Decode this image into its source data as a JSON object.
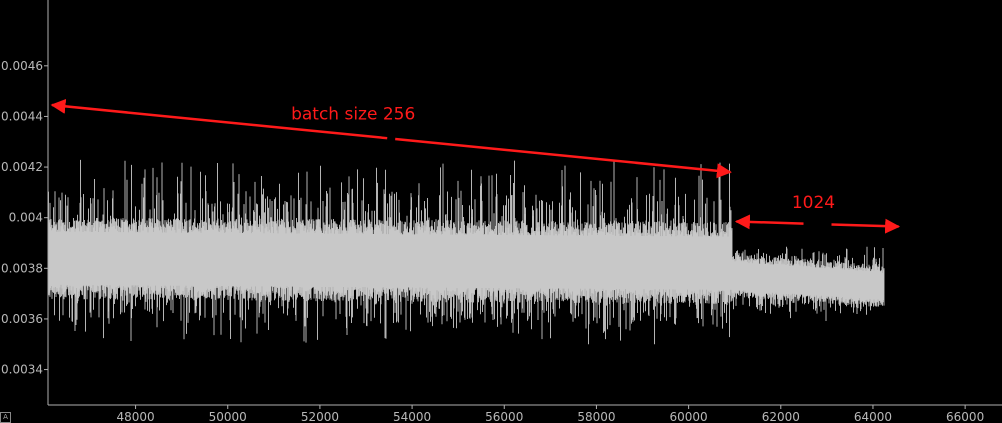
{
  "chart_data": {
    "type": "line",
    "title": "",
    "xlabel": "",
    "ylabel": "",
    "xlim": [
      46100,
      66800
    ],
    "ylim": [
      0.00326,
      0.00486
    ],
    "grid": false,
    "x_ticks": [
      48000,
      50000,
      52000,
      54000,
      56000,
      58000,
      60000,
      62000,
      64000,
      66000
    ],
    "x_tick_labels": [
      "48000",
      "50000",
      "52000",
      "54000",
      "56000",
      "58000",
      "60000",
      "62000",
      "64000",
      "66000"
    ],
    "y_ticks": [
      0.0034,
      0.0036,
      0.0038,
      0.004,
      0.0042,
      0.0044,
      0.0046
    ],
    "y_tick_labels": [
      "0.0034",
      "0.0036",
      "0.0038",
      "0.004",
      "0.0042",
      "0.0044",
      "0.0046"
    ],
    "series": [
      {
        "color": "#c8c8c8",
        "segments": [
          {
            "x_start": 46100,
            "x_end": 60950,
            "band_low": 0.0037,
            "band_high": 0.00395,
            "mean_start": 0.00384,
            "mean_end": 0.00382,
            "spike_max": 0.00423,
            "spike_min": 0.0035
          },
          {
            "x_start": 60950,
            "x_end": 64250,
            "band_low": 0.00368,
            "band_high": 0.00381,
            "mean_start": 0.00377,
            "mean_end": 0.00373,
            "spike_max": 0.00389,
            "spike_min": 0.00359
          }
        ]
      }
    ],
    "annotations": [
      {
        "text": "batch size 256",
        "color": "#ff1a1a",
        "arrow_from_x": 46100,
        "arrow_to_x": 60950,
        "arrow_y_start": 0.004445,
        "arrow_y_end": 0.00418
      },
      {
        "text": "1024",
        "color": "#ff1a1a",
        "arrow_from_x": 60950,
        "arrow_to_x": 64600,
        "arrow_y_start": 0.003985,
        "arrow_y_end": 0.003965
      }
    ]
  }
}
